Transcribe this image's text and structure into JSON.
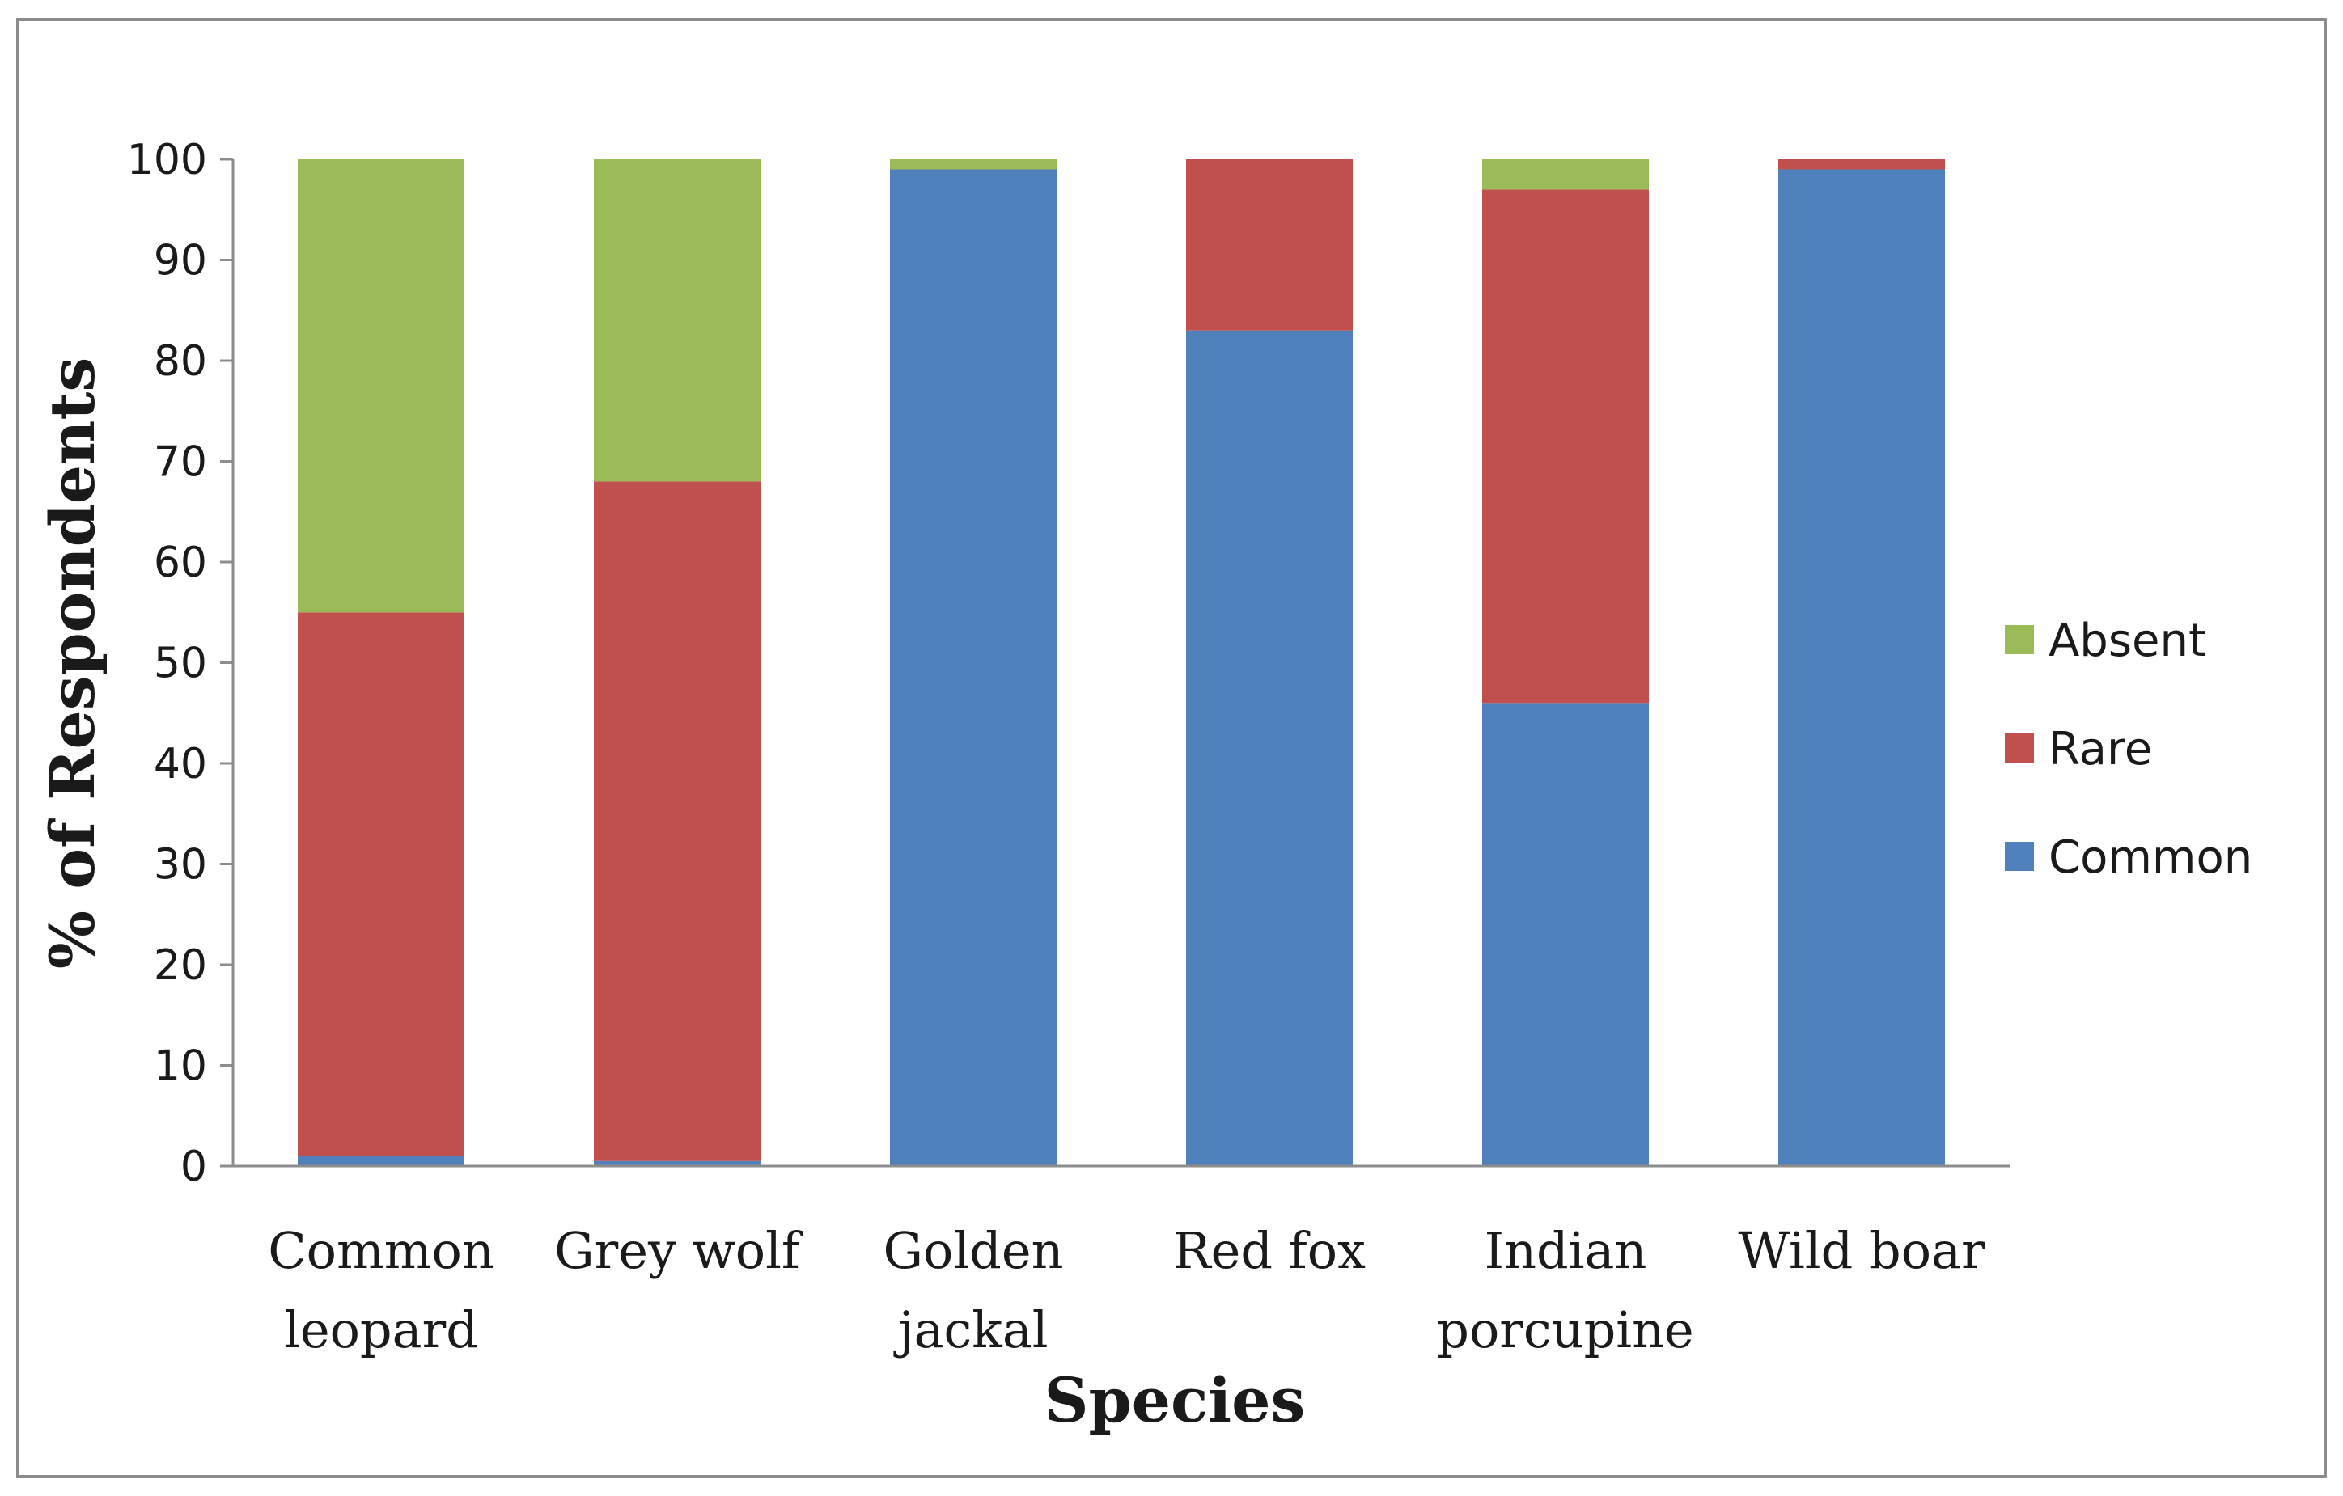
{
  "chart_data": {
    "type": "bar",
    "stacked": true,
    "title": "",
    "xlabel": "Species",
    "ylabel": "% of Respondents",
    "ylim": [
      0,
      100
    ],
    "yticks": [
      0,
      10,
      20,
      30,
      40,
      50,
      60,
      70,
      80,
      90,
      100
    ],
    "grid": false,
    "legend_position": "right",
    "categories": [
      [
        "Common",
        "leopard"
      ],
      [
        "Grey wolf"
      ],
      [
        "Golden",
        "jackal"
      ],
      [
        "Red fox"
      ],
      [
        "Indian",
        "porcupine"
      ],
      [
        "Wild boar"
      ]
    ],
    "series": [
      {
        "name": "Common",
        "color": "#4f81bd",
        "values": [
          1,
          0.5,
          99,
          83,
          46,
          99
        ]
      },
      {
        "name": "Rare",
        "color": "#c0504d",
        "values": [
          54,
          67.5,
          0,
          17,
          51,
          1
        ]
      },
      {
        "name": "Absent",
        "color": "#9bbb59",
        "values": [
          45,
          32,
          1,
          0,
          3,
          0
        ]
      }
    ],
    "legend_order": [
      "Absent",
      "Rare",
      "Common"
    ]
  }
}
